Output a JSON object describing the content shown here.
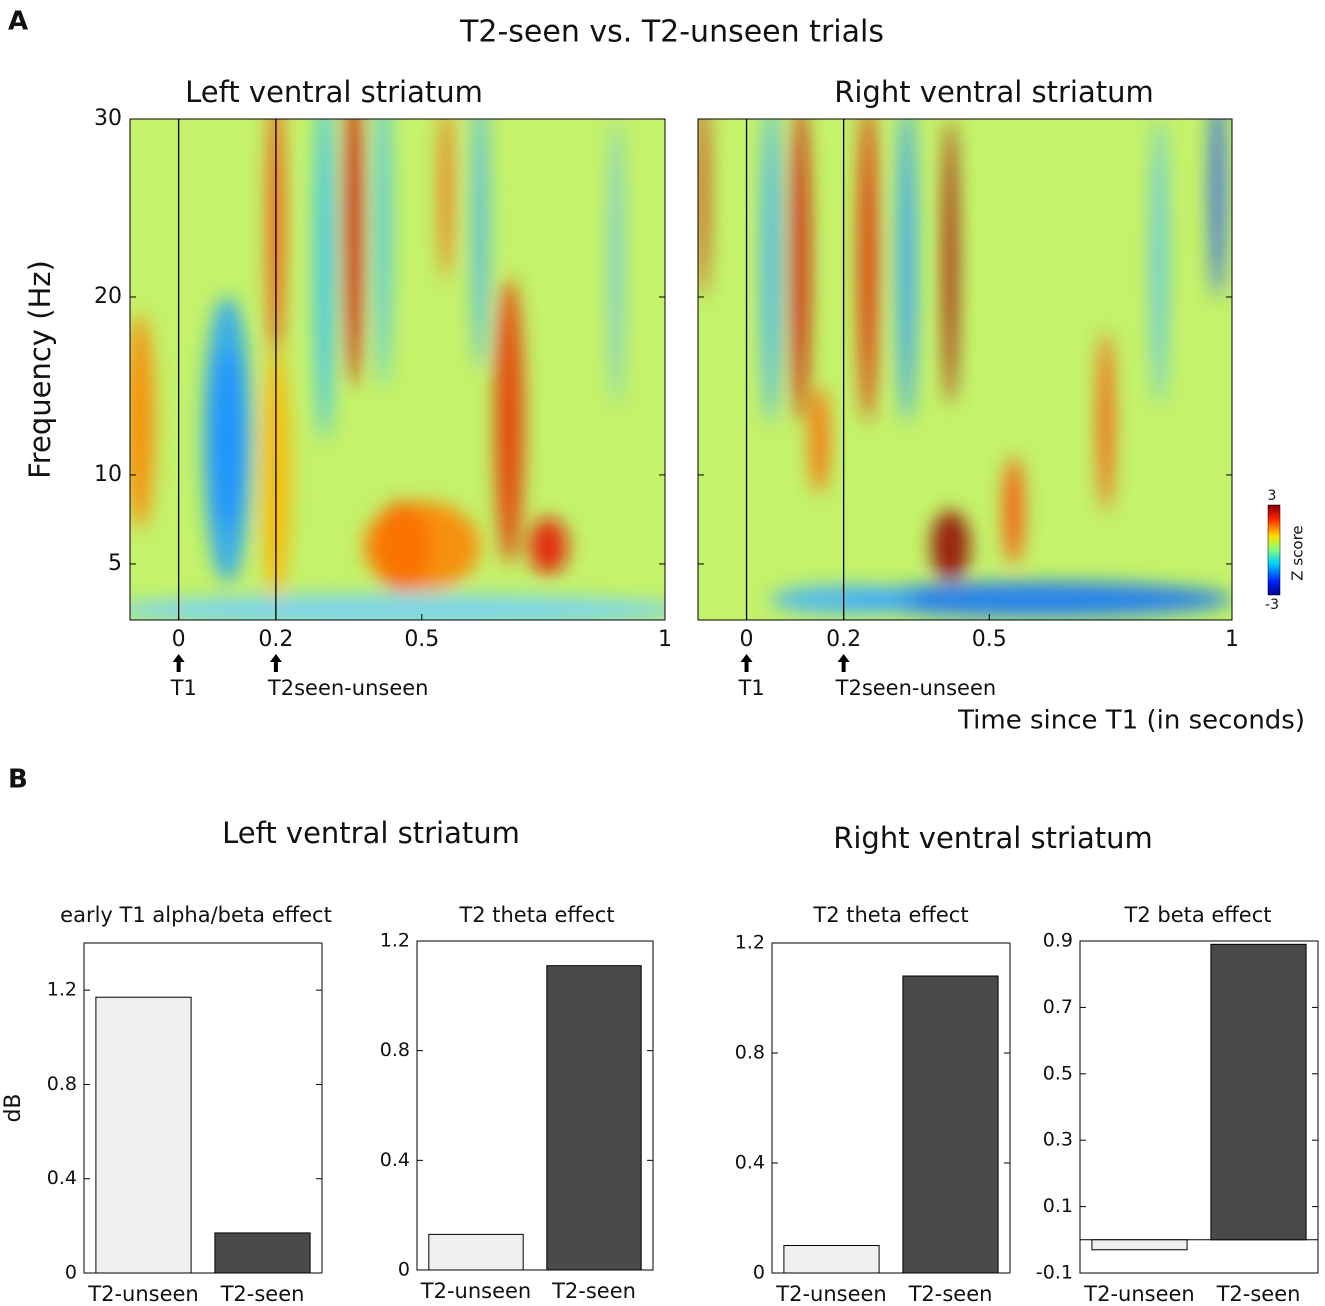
{
  "panel_labels": [
    "A",
    "B"
  ],
  "title": "T2-seen vs. T2-unseen trials",
  "section_titles": [
    "Left ventral striatum",
    "Right ventral striatum"
  ],
  "chart_data": [
    {
      "type": "heatmap",
      "title": "Left ventral striatum",
      "xlim": [
        -0.1,
        1
      ],
      "xticks": [
        0,
        0.2,
        0.5,
        1
      ],
      "ylim": [
        1.85,
        30
      ],
      "yticks": [
        5,
        10,
        20,
        30
      ],
      "ylabel": "Frequency (Hz)",
      "annotations": [
        {
          "x": 0,
          "text": "T1"
        },
        {
          "x": 0.2,
          "text": "T2seen-unseen"
        }
      ]
    },
    {
      "type": "heatmap",
      "title": "Right ventral striatum",
      "xlim": [
        -0.1,
        1
      ],
      "xticks": [
        0,
        0.2,
        0.5,
        1
      ],
      "xlabel": "Time since T1 (in seconds)",
      "annotations": [
        {
          "x": 0,
          "text": "T1"
        },
        {
          "x": 0.2,
          "text": "T2seen-unseen"
        }
      ],
      "clim": [
        -3,
        3
      ],
      "cticks": [
        -3,
        3
      ],
      "colorbar_label": "Z score"
    },
    {
      "type": "bar",
      "title": "early T1 alpha/beta effect",
      "categories": [
        "T2-unseen",
        "T2-seen"
      ],
      "values": [
        1.17,
        0.17
      ],
      "colors": [
        "#efefef",
        "#4a4a4a"
      ],
      "ylim": [
        0,
        1.4
      ],
      "yticks": [
        0,
        0.4,
        0.8,
        1.2
      ],
      "ylabel": "dB"
    },
    {
      "type": "bar",
      "title": "T2 theta effect",
      "categories": [
        "T2-unseen",
        "T2-seen"
      ],
      "values": [
        0.13,
        1.11
      ],
      "colors": [
        "#efefef",
        "#4a4a4a"
      ],
      "ylim": [
        0,
        1.2
      ],
      "yticks": [
        0,
        0.4,
        0.8,
        1.2
      ]
    },
    {
      "type": "bar",
      "title": "T2 theta effect",
      "categories": [
        "T2-unseen",
        "T2-seen"
      ],
      "values": [
        0.1,
        1.08
      ],
      "colors": [
        "#efefef",
        "#4a4a4a"
      ],
      "ylim": [
        0,
        1.2
      ],
      "yticks": [
        0,
        0.4,
        0.8,
        1.2
      ]
    },
    {
      "type": "bar",
      "title": "T2 beta effect",
      "categories": [
        "T2-unseen",
        "T2-seen"
      ],
      "values": [
        -0.03,
        0.89
      ],
      "colors": [
        "#efefef",
        "#4a4a4a"
      ],
      "ylim": [
        -0.1,
        0.9
      ],
      "yticks": [
        -0.1,
        0.1,
        0.3,
        0.5,
        0.7,
        0.9
      ]
    }
  ]
}
